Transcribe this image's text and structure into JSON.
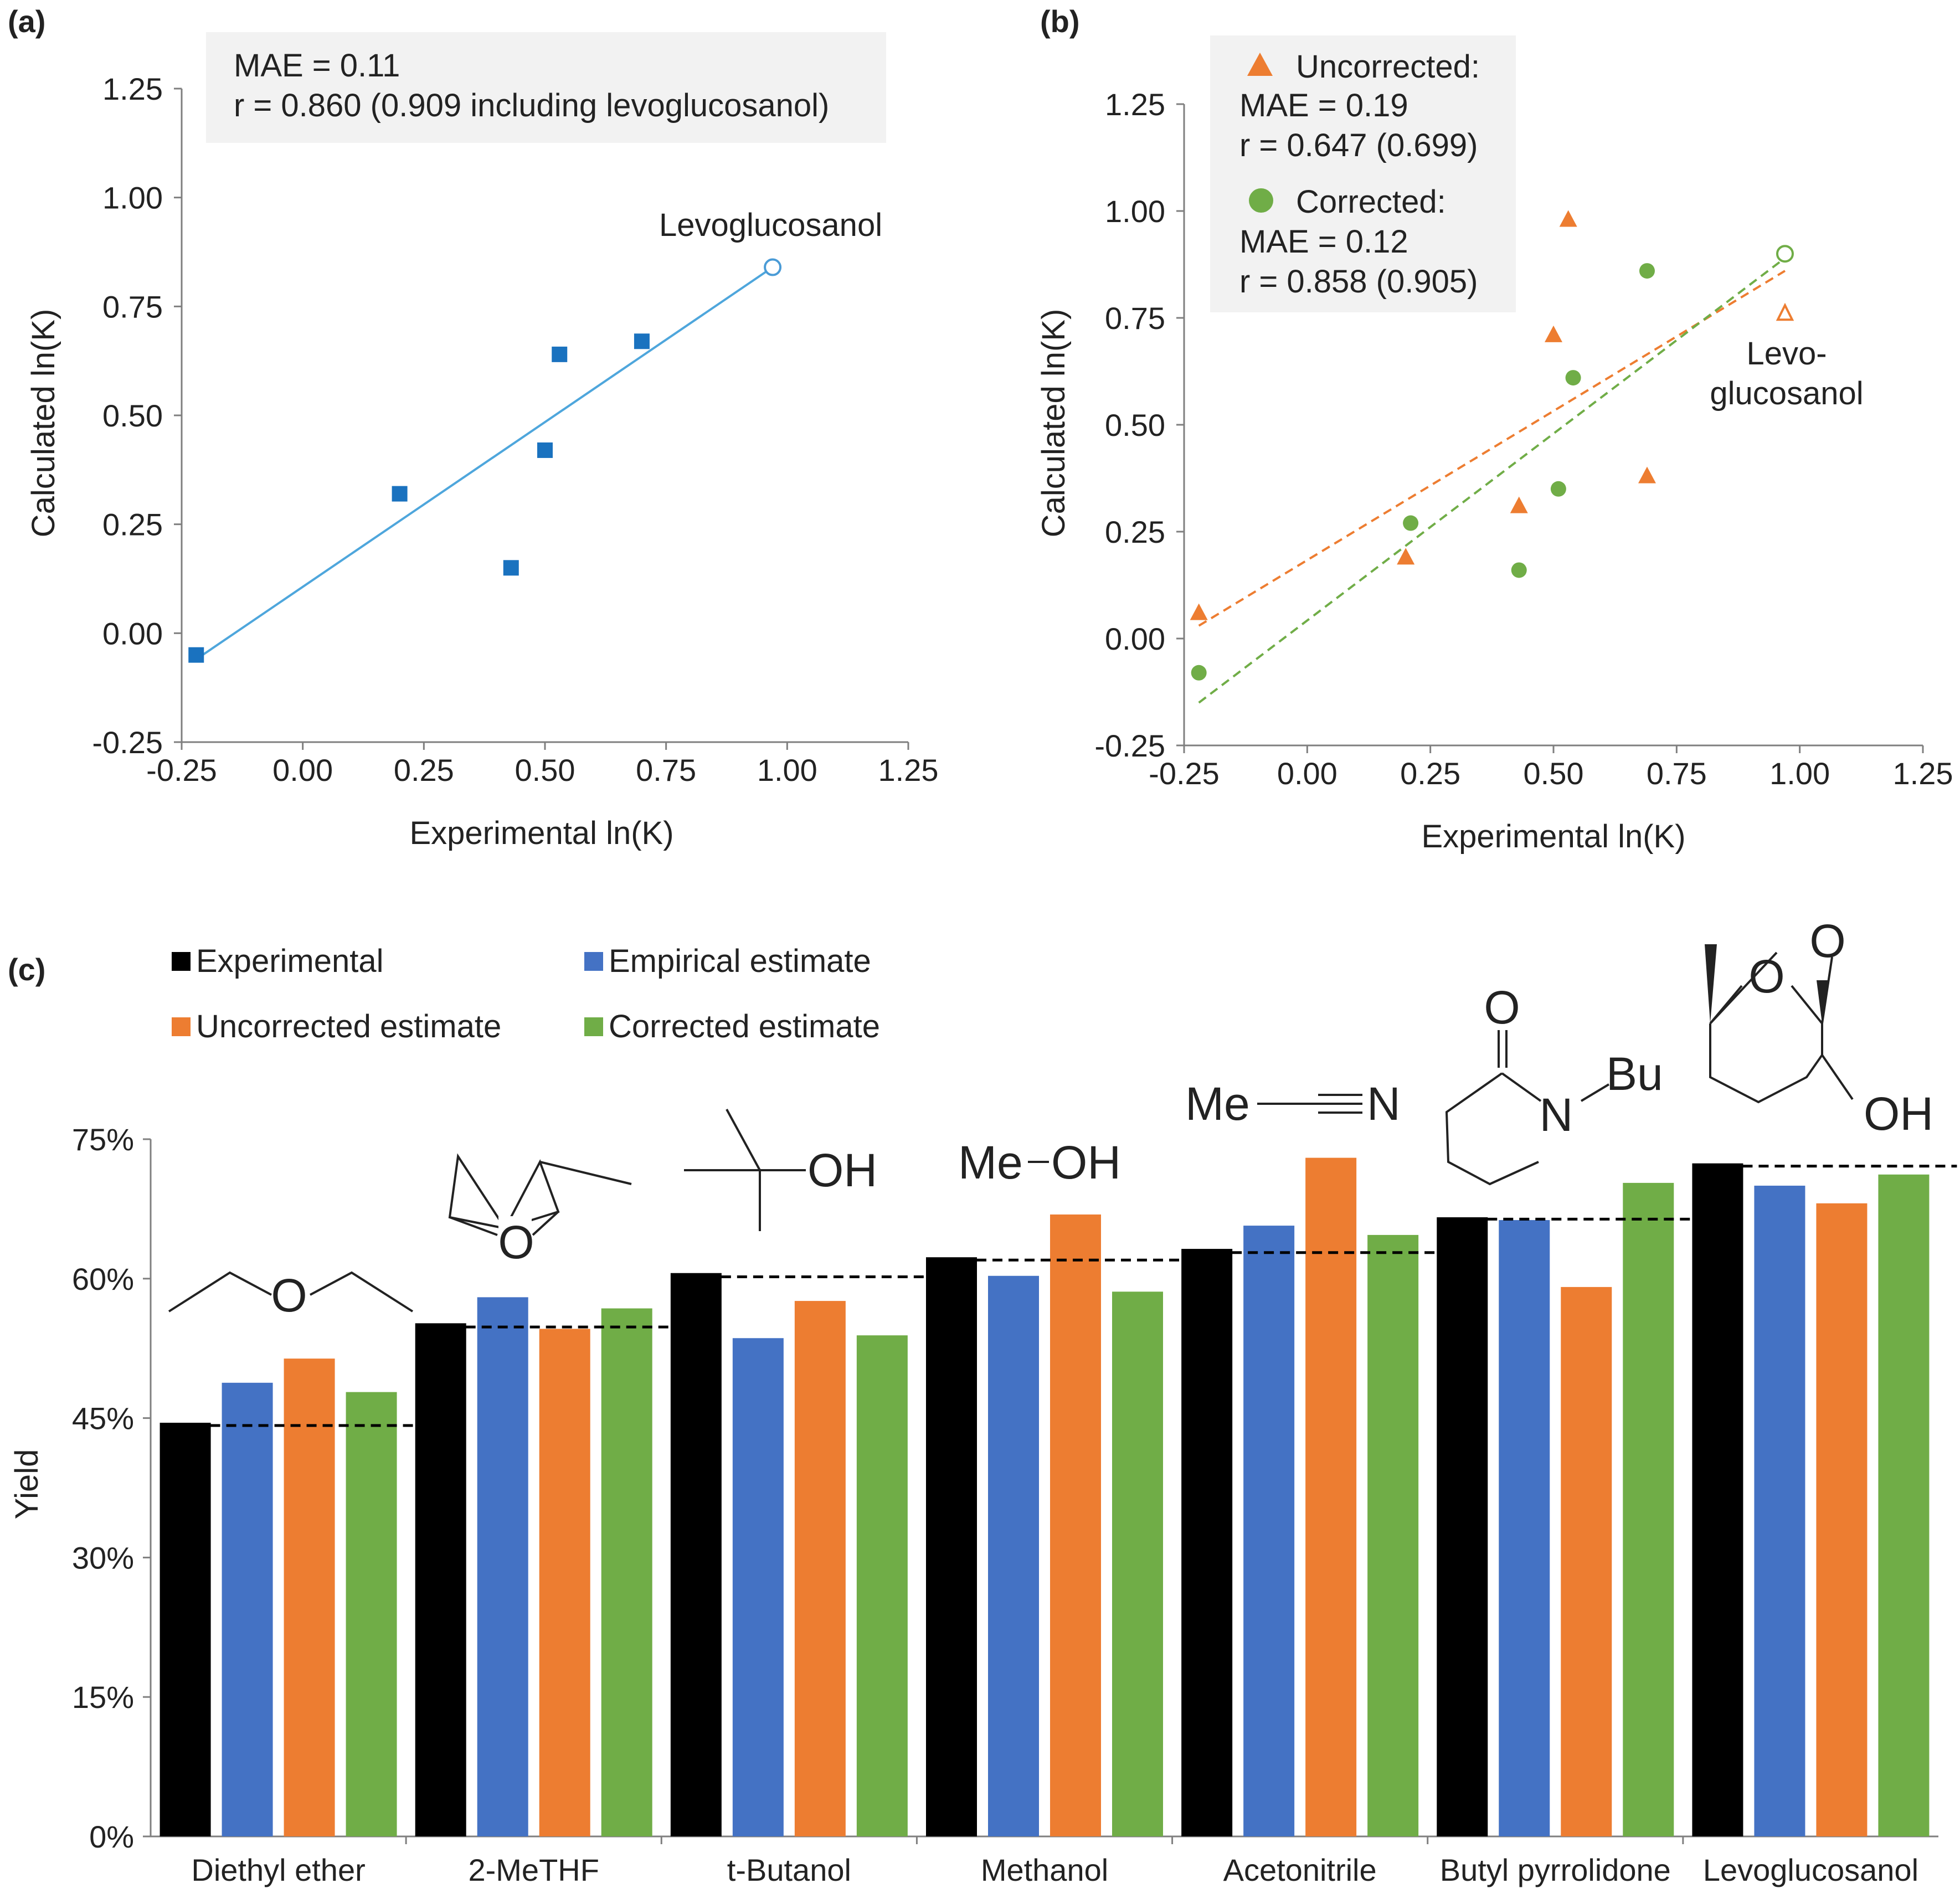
{
  "chart_data": [
    {
      "panel": "(a)",
      "type": "scatter",
      "xlabel": "Experimental  ln(K)",
      "ylabel": "Calculated ln(K)",
      "xlim": [
        -0.25,
        1.25
      ],
      "ylim": [
        -0.25,
        1.25
      ],
      "xticks": [
        "-0.25",
        "0.00",
        "0.25",
        "0.50",
        "0.75",
        "1.00",
        "1.25"
      ],
      "yticks": [
        "-0.25",
        "0.00",
        "0.25",
        "0.50",
        "0.75",
        "1.00",
        "1.25"
      ],
      "stats_box": [
        "MAE = 0.11",
        "r = 0.860 (0.909 including levoglucosanol)"
      ],
      "series": [
        {
          "name": "Calculated",
          "color": "#1a72bf",
          "marker": "square",
          "points": [
            [
              -0.22,
              -0.05
            ],
            [
              0.2,
              0.32
            ],
            [
              0.43,
              0.15
            ],
            [
              0.5,
              0.42
            ],
            [
              0.53,
              0.64
            ],
            [
              0.7,
              0.67
            ]
          ]
        },
        {
          "name": "Levoglucosanol",
          "color": "#4a9bd6",
          "marker": "open-circle",
          "points": [
            [
              0.97,
              0.84
            ]
          ]
        }
      ],
      "trendline": {
        "color": "#4ea6dc",
        "from": [
          -0.22,
          -0.06
        ],
        "to": [
          0.97,
          0.84
        ]
      },
      "annotation": "Levoglucosanol"
    },
    {
      "panel": "(b)",
      "type": "scatter",
      "xlabel": "Experimental  ln(K)",
      "ylabel": "Calculated ln(K)",
      "xlim": [
        -0.25,
        1.25
      ],
      "ylim": [
        -0.25,
        1.25
      ],
      "xticks": [
        "-0.25",
        "0.00",
        "0.25",
        "0.50",
        "0.75",
        "1.00",
        "1.25"
      ],
      "yticks": [
        "-0.25",
        "0.00",
        "0.25",
        "0.50",
        "0.75",
        "1.00",
        "1.25"
      ],
      "legend": [
        {
          "label": "Uncorrected:",
          "lines": [
            "MAE = 0.19",
            "r = 0.647 (0.699)"
          ],
          "color": "#ed7d31",
          "marker": "triangle"
        },
        {
          "label": "Corrected:",
          "lines": [
            "MAE = 0.12",
            "r = 0.858 (0.905)"
          ],
          "color": "#70ad47",
          "marker": "circle"
        }
      ],
      "series": [
        {
          "name": "Uncorrected",
          "color": "#ed7d31",
          "marker": "triangle",
          "points": [
            [
              -0.22,
              0.06
            ],
            [
              0.2,
              0.19
            ],
            [
              0.43,
              0.31
            ],
            [
              0.5,
              0.71
            ],
            [
              0.53,
              0.98
            ],
            [
              0.69,
              0.38
            ]
          ]
        },
        {
          "name": "Corrected",
          "color": "#70ad47",
          "marker": "circle",
          "points": [
            [
              -0.22,
              -0.08
            ],
            [
              0.21,
              0.27
            ],
            [
              0.43,
              0.16
            ],
            [
              0.51,
              0.35
            ],
            [
              0.54,
              0.61
            ],
            [
              0.69,
              0.86
            ]
          ]
        },
        {
          "name": "Uncorrected levoglucosanol",
          "color": "#ed7d31",
          "marker": "open-triangle",
          "points": [
            [
              0.97,
              0.76
            ]
          ]
        },
        {
          "name": "Corrected levoglucosanol",
          "color": "#70ad47",
          "marker": "open-circle",
          "points": [
            [
              0.97,
              0.9
            ]
          ]
        }
      ],
      "trendlines": [
        {
          "name": "Uncorrected",
          "color": "#ed7d31",
          "from": [
            -0.22,
            0.03
          ],
          "to": [
            0.97,
            0.86
          ]
        },
        {
          "name": "Corrected",
          "color": "#70ad47",
          "from": [
            -0.22,
            -0.15
          ],
          "to": [
            0.97,
            0.89
          ]
        }
      ],
      "annotation": [
        "Levo-",
        "glucosanol"
      ]
    },
    {
      "panel": "(c)",
      "type": "bar",
      "ylabel": "Yield",
      "ylim": [
        0,
        75
      ],
      "yticks": [
        "0%",
        "15%",
        "30%",
        "45%",
        "60%",
        "75%"
      ],
      "categories": [
        "Diethyl ether",
        "2-MeTHF",
        "t-Butanol",
        "Methanol",
        "Acetonitrile",
        "Butyl pyrrolidone",
        "Levoglucosanol"
      ],
      "series": [
        {
          "name": "Experimental",
          "color": "#000000",
          "values": [
            44.5,
            55.2,
            60.6,
            62.3,
            63.2,
            66.6,
            72.4
          ]
        },
        {
          "name": "Empirical estimate",
          "color": "#4472c4",
          "values": [
            48.8,
            58.0,
            53.6,
            60.3,
            65.7,
            66.3,
            70.0
          ]
        },
        {
          "name": "Uncorrected estimate",
          "color": "#ed7d31",
          "values": [
            51.4,
            54.6,
            57.6,
            66.9,
            73.0,
            59.1,
            68.1
          ]
        },
        {
          "name": "Corrected estimate",
          "color": "#70ad47",
          "values": [
            47.8,
            56.8,
            53.9,
            58.6,
            64.7,
            70.3,
            71.2
          ]
        }
      ],
      "reference_lines": [
        44.2,
        54.8,
        60.2,
        62.0,
        62.8,
        66.4,
        72.1
      ],
      "structure_labels": {
        "methanol": [
          "Me",
          "OH"
        ],
        "acetonitrile": [
          "Me",
          "N"
        ],
        "tbutanol": [
          "OH"
        ],
        "pyrrolidone": [
          "O",
          "N",
          "Bu"
        ],
        "ether_o": "O",
        "levo": [
          "O",
          "O",
          "OH"
        ]
      }
    }
  ]
}
